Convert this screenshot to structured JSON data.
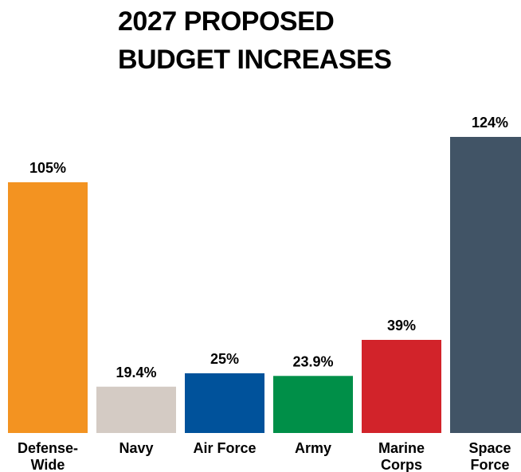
{
  "chart_data": {
    "type": "bar",
    "title_lines": [
      "2027 PROPOSED",
      "BUDGET INCREASES"
    ],
    "categories": [
      [
        "Defense-",
        "Wide"
      ],
      [
        "Navy"
      ],
      [
        "Air Force"
      ],
      [
        "Army"
      ],
      [
        "Marine",
        "Corps"
      ],
      [
        "Space",
        "Force"
      ]
    ],
    "values": [
      105,
      19.4,
      25,
      23.9,
      39,
      124
    ],
    "value_labels": [
      "105%",
      "19.4%",
      "25%",
      "23.9%",
      "39%",
      "124%"
    ],
    "colors": [
      "#f39321",
      "#d4cbc4",
      "#00529b",
      "#008f48",
      "#d2232a",
      "#415466"
    ],
    "grid": false,
    "legend": "none"
  }
}
